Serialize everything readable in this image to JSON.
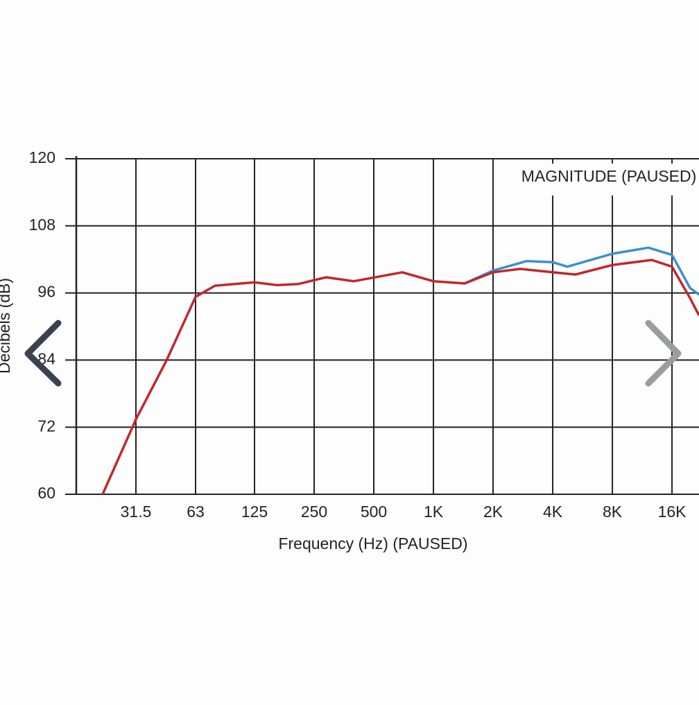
{
  "chart_data": {
    "type": "line",
    "annotation": "MAGNITUDE (PAUSED)",
    "x_label": "Frequency (Hz) (PAUSED)",
    "y_label": "Decibels (dB)",
    "xscale": "log",
    "xlim": [
      15.75,
      21900
    ],
    "ylim": [
      60,
      120
    ],
    "xticks": [
      31.5,
      63,
      125,
      250,
      500,
      {
        "value": 1000,
        "label": "1K"
      },
      {
        "value": 2000,
        "label": "2K"
      },
      {
        "value": 4000,
        "label": "4K"
      },
      {
        "value": 8000,
        "label": "8K"
      },
      {
        "value": 16000,
        "label": "16K"
      }
    ],
    "yticks": [
      60,
      72,
      84,
      96,
      108,
      120
    ],
    "grid": true,
    "series": [
      {
        "color": "#3b8fd0",
        "x": [
          1437,
          2000,
          2960,
          4000,
          4740,
          8000,
          12160,
          16000,
          19720,
          21900
        ],
        "values": [
          97.7,
          100.0,
          101.7,
          101.5,
          100.7,
          103.0,
          104.1,
          102.8,
          96.9,
          95.7
        ]
      },
      {
        "color": "#c0272d",
        "x": [
          21.4,
          31.5,
          44.9,
          63,
          79,
          125,
          163,
          208,
          287,
          396,
          696,
          1000,
          1437,
          2000,
          2740,
          4000,
          5210,
          8000,
          12660,
          16000,
          19720,
          21900
        ],
        "values": [
          60,
          73.4,
          83.9,
          95.3,
          97.3,
          97.9,
          97.4,
          97.6,
          98.8,
          98.1,
          99.7,
          98.1,
          97.7,
          99.7,
          100.3,
          99.7,
          99.3,
          101.0,
          101.9,
          100.7,
          95.1,
          92.0
        ]
      }
    ]
  }
}
